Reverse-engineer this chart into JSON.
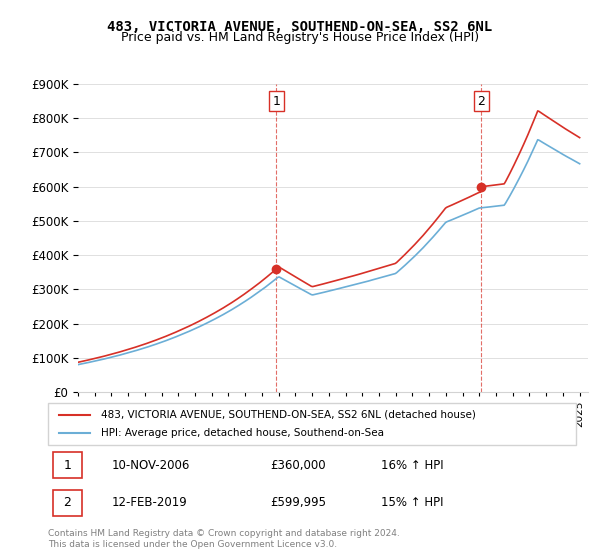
{
  "title": "483, VICTORIA AVENUE, SOUTHEND-ON-SEA, SS2 6NL",
  "subtitle": "Price paid vs. HM Land Registry's House Price Index (HPI)",
  "legend_line1": "483, VICTORIA AVENUE, SOUTHEND-ON-SEA, SS2 6NL (detached house)",
  "legend_line2": "HPI: Average price, detached house, Southend-on-Sea",
  "footnote": "Contains HM Land Registry data © Crown copyright and database right 2024.\nThis data is licensed under the Open Government Licence v3.0.",
  "transaction1_label": "1",
  "transaction1_date": "10-NOV-2006",
  "transaction1_price": "£360,000",
  "transaction1_hpi": "16% ↑ HPI",
  "transaction1_x": 2006.86,
  "transaction1_y": 360000,
  "transaction2_label": "2",
  "transaction2_date": "12-FEB-2019",
  "transaction2_price": "£599,995",
  "transaction2_hpi": "15% ↑ HPI",
  "transaction2_x": 2019.12,
  "transaction2_y": 599995,
  "vline1_x": 2006.86,
  "vline2_x": 2019.12,
  "hpi_color": "#6baed6",
  "price_color": "#d73027",
  "marker_color": "#d73027",
  "vline_color": "#d73027",
  "ylim": [
    0,
    900000
  ],
  "yticks": [
    0,
    100000,
    200000,
    300000,
    400000,
    500000,
    600000,
    700000,
    800000,
    900000
  ],
  "xlim_start": 1995.0,
  "xlim_end": 2025.5
}
